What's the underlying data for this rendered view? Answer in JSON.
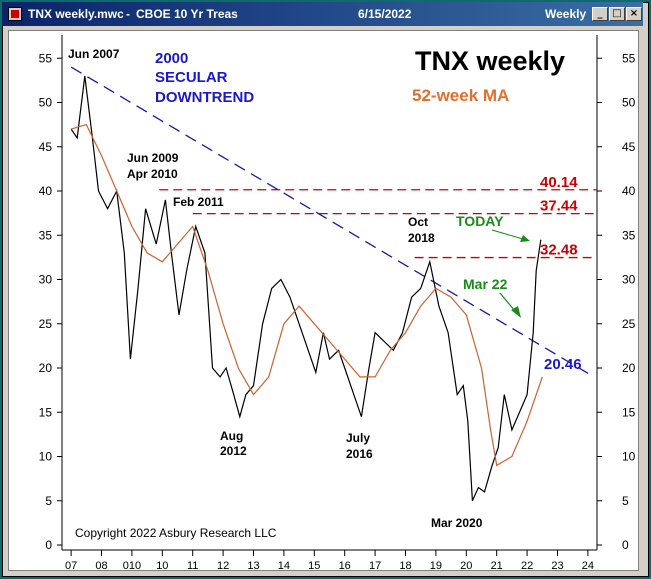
{
  "window": {
    "file": "TNX weekly.mwc",
    "symbol": "CBOE 10 Yr Treas",
    "date": "6/15/2022",
    "period": "Weekly",
    "colors": {
      "titlebar": "#0a246a",
      "frame": "#d4d0c8",
      "desktop": "#0f6b6b"
    }
  },
  "chart_data": {
    "type": "line",
    "title": "TNX weekly",
    "subtitle": "52-week MA",
    "copyright": "Copyright 2022 Asbury Research LLC",
    "x_ticks": [
      "07",
      "08",
      "010",
      "10",
      "11",
      "12",
      "13",
      "14",
      "15",
      "16",
      "17",
      "18",
      "19",
      "20",
      "21",
      "22",
      "23",
      "24"
    ],
    "y_ticks": [
      0,
      5,
      10,
      15,
      20,
      25,
      30,
      35,
      40,
      45,
      50,
      55
    ],
    "ylim": [
      0,
      58
    ],
    "xlim": [
      2006.7,
      2024.3
    ],
    "series": [
      {
        "name": "TNX weekly",
        "color": "#000000",
        "x": [
          2007.0,
          2007.2,
          2007.45,
          2007.7,
          2007.9,
          2008.2,
          2008.5,
          2008.75,
          2008.95,
          2009.2,
          2009.45,
          2009.8,
          2010.1,
          2010.3,
          2010.55,
          2010.8,
          2011.1,
          2011.4,
          2011.65,
          2011.9,
          2012.1,
          2012.35,
          2012.55,
          2012.75,
          2013.0,
          2013.3,
          2013.6,
          2013.9,
          2014.2,
          2014.5,
          2014.8,
          2015.05,
          2015.3,
          2015.5,
          2015.8,
          2016.0,
          2016.3,
          2016.55,
          2016.8,
          2017.0,
          2017.3,
          2017.6,
          2017.9,
          2018.2,
          2018.5,
          2018.8,
          2019.1,
          2019.4,
          2019.7,
          2019.9,
          2020.05,
          2020.2,
          2020.4,
          2020.6,
          2020.85,
          2021.05,
          2021.25,
          2021.5,
          2021.75,
          2022.0,
          2022.2,
          2022.3,
          2022.45
        ],
        "values": [
          47,
          46,
          53,
          46,
          40,
          38,
          40,
          33,
          21,
          29,
          38,
          34,
          39,
          33,
          26,
          31,
          36,
          33,
          20,
          19,
          20,
          17,
          14.5,
          17,
          18,
          25,
          29,
          30,
          28,
          25,
          22,
          19.5,
          24,
          21,
          22,
          20,
          17,
          14.5,
          20,
          24,
          23,
          22,
          24,
          28,
          29,
          32,
          27,
          24,
          17,
          18,
          14,
          5,
          6.5,
          6,
          9,
          11,
          17,
          13,
          15,
          17,
          24,
          31,
          34.5
        ]
      },
      {
        "name": "52-week MA",
        "color": "#c86432",
        "x": [
          2007.0,
          2007.5,
          2008.0,
          2008.5,
          2009.0,
          2009.5,
          2010.0,
          2010.5,
          2011.0,
          2011.5,
          2012.0,
          2012.5,
          2013.0,
          2013.5,
          2014.0,
          2014.5,
          2015.0,
          2015.5,
          2016.0,
          2016.5,
          2017.0,
          2017.5,
          2018.0,
          2018.5,
          2019.0,
          2019.5,
          2020.0,
          2020.5,
          2020.8,
          2021.0,
          2021.5,
          2022.0,
          2022.5
        ],
        "values": [
          47,
          47.5,
          44,
          40,
          36,
          33,
          32,
          34,
          36,
          31,
          25,
          20,
          17,
          19,
          25,
          27,
          25,
          23,
          21,
          19,
          19,
          22,
          24,
          27,
          29,
          28,
          26,
          20,
          13,
          9,
          10,
          14,
          19
        ]
      }
    ],
    "annotations": {
      "secular": [
        "2000",
        "SECULAR",
        "DOWNTREND"
      ],
      "peaks": [
        {
          "label": "Jun 2007"
        },
        {
          "label": "Jun 2009"
        },
        {
          "label": "Apr 2010"
        },
        {
          "label": "Feb 2011"
        },
        {
          "label": "Oct"
        },
        {
          "label": "2018"
        }
      ],
      "troughs": [
        {
          "label": "Aug"
        },
        {
          "label": "2012"
        },
        {
          "label": "July"
        },
        {
          "label": "2016"
        },
        {
          "label": "Mar 2020"
        }
      ],
      "today": "TODAY",
      "mar22": "Mar 22",
      "levels": [
        {
          "label": "40.14",
          "y": 40.14
        },
        {
          "label": "37.44",
          "y": 37.44
        },
        {
          "label": "32.48",
          "y": 32.48
        }
      ],
      "trendline_level": {
        "label": "20.46",
        "y": 20.46
      },
      "trendline": {
        "x": [
          2007.0,
          2024.2
        ],
        "y": [
          54,
          19
        ]
      }
    }
  }
}
